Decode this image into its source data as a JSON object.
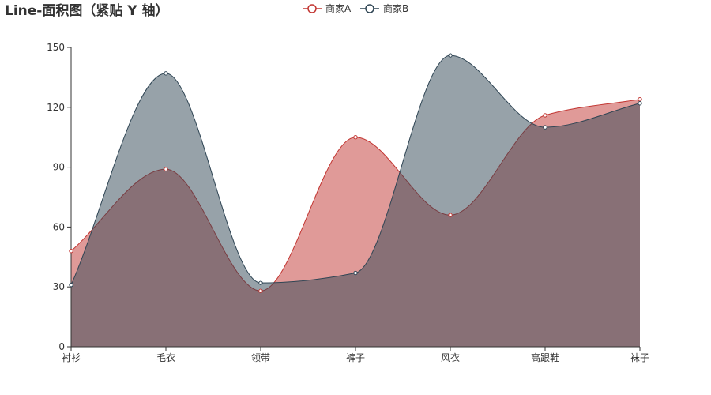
{
  "chart_data": {
    "type": "area",
    "title": "Line-面积图（紧贴 Y 轴）",
    "categories": [
      "衬衫",
      "毛衣",
      "领带",
      "裤子",
      "风衣",
      "高跟鞋",
      "袜子"
    ],
    "series": [
      {
        "name": "商家A",
        "values": [
          48,
          89,
          28,
          105,
          66,
          116,
          124
        ],
        "color": "#c23531"
      },
      {
        "name": "商家B",
        "values": [
          31,
          137,
          32,
          37,
          146,
          110,
          122
        ],
        "color": "#2f4554"
      }
    ],
    "yticks": [
      0,
      30,
      60,
      90,
      120,
      150
    ],
    "ylim": [
      0,
      150
    ],
    "xlabel": "",
    "ylabel": "",
    "smooth": true,
    "boundary_gap": false,
    "legend_position": "top-center"
  }
}
